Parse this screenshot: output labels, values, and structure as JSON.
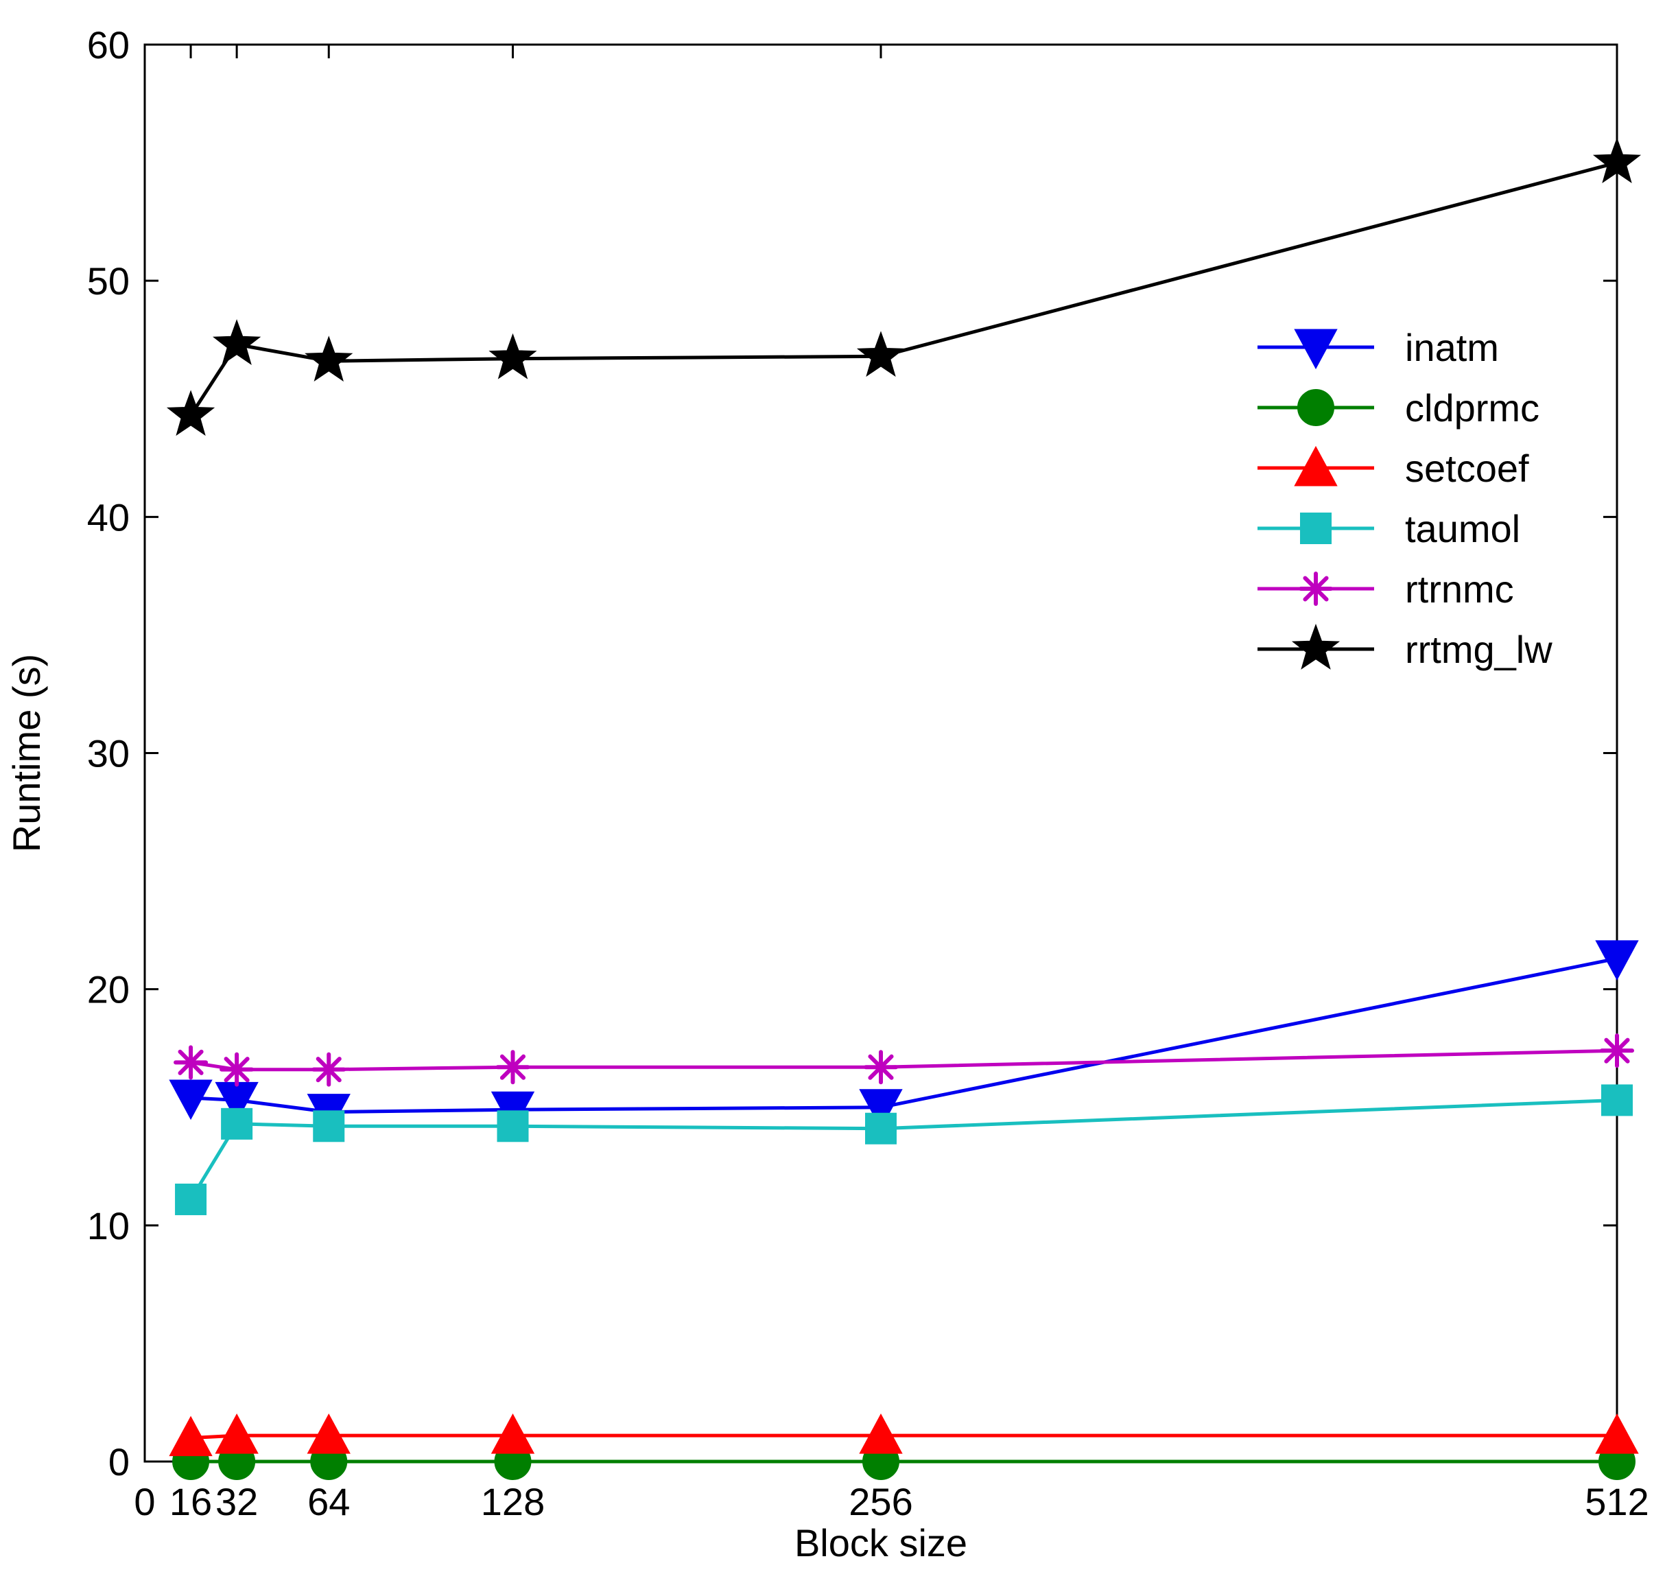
{
  "chart_data": {
    "type": "line",
    "title": "",
    "xlabel": "Block size",
    "ylabel": "Runtime (s)",
    "xlim": [
      0,
      512
    ],
    "ylim": [
      0,
      60
    ],
    "xticks": [
      0,
      16,
      32,
      64,
      128,
      256,
      512
    ],
    "xtick_labels": [
      "0",
      "16",
      "32",
      "64",
      "128",
      "256",
      "512"
    ],
    "yticks": [
      0,
      10,
      20,
      30,
      40,
      50,
      60
    ],
    "ytick_labels": [
      "0",
      "10",
      "20",
      "30",
      "40",
      "50",
      "60"
    ],
    "grid": false,
    "legend_position": "upper-right",
    "x": [
      16,
      32,
      64,
      128,
      256,
      512
    ],
    "series": [
      {
        "name": "inatm",
        "color": "#0000ee",
        "marker": "triangle-down",
        "values": [
          15.4,
          15.3,
          14.8,
          14.9,
          15.0,
          21.3
        ]
      },
      {
        "name": "cldprmc",
        "color": "#007f00",
        "marker": "circle",
        "values": [
          0.0,
          0.0,
          0.0,
          0.0,
          0.0,
          0.0
        ]
      },
      {
        "name": "setcoef",
        "color": "#ff0000",
        "marker": "triangle-up",
        "values": [
          1.0,
          1.1,
          1.1,
          1.1,
          1.1,
          1.1
        ]
      },
      {
        "name": "taumol",
        "color": "#19bfbf",
        "marker": "square",
        "values": [
          11.1,
          14.3,
          14.2,
          14.2,
          14.1,
          15.3
        ]
      },
      {
        "name": "rtrnmc",
        "color": "#bf00bf",
        "marker": "asterisk",
        "values": [
          16.9,
          16.6,
          16.6,
          16.7,
          16.7,
          17.4
        ]
      },
      {
        "name": "rrtmg_lw",
        "color": "#000000",
        "marker": "star",
        "values": [
          44.3,
          47.3,
          46.6,
          46.7,
          46.8,
          55.0
        ]
      }
    ]
  }
}
